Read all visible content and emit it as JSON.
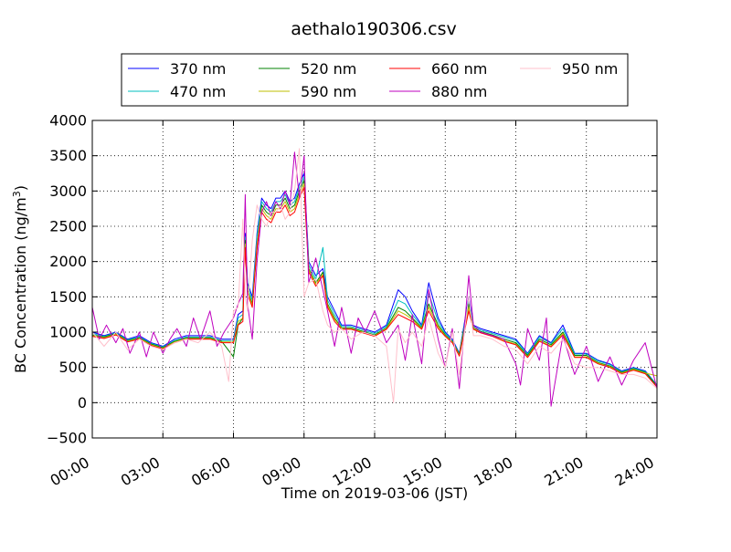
{
  "chart_data": {
    "type": "line",
    "title": "aethalo190306.csv",
    "xlabel": "Time on 2019-03-06 (JST)",
    "ylabel": "BC Concentration (ng/m",
    "ylabel_sup": "3",
    "ylabel_end": ")",
    "xlim": [
      0,
      24
    ],
    "ylim": [
      -500,
      4000
    ],
    "x_ticks": [
      0,
      3,
      6,
      9,
      12,
      15,
      18,
      21,
      24
    ],
    "x_tick_labels": [
      "00:00",
      "03:00",
      "06:00",
      "09:00",
      "12:00",
      "15:00",
      "18:00",
      "21:00",
      "24:00"
    ],
    "y_ticks": [
      -500,
      0,
      500,
      1000,
      1500,
      2000,
      2500,
      3000,
      3500,
      4000
    ],
    "y_tick_labels": [
      "−500",
      "0",
      "500",
      "1000",
      "1500",
      "2000",
      "2500",
      "3000",
      "3500",
      "4000"
    ],
    "grid": true,
    "legend_position": "top",
    "series": [
      {
        "name": "370 nm",
        "color": "#0000ff",
        "x": [
          0,
          0.5,
          1,
          1.5,
          2,
          2.5,
          3,
          3.5,
          4,
          4.5,
          5,
          5.5,
          6,
          6.2,
          6.4,
          6.5,
          6.6,
          6.8,
          7,
          7.2,
          7.4,
          7.6,
          7.8,
          8,
          8.2,
          8.4,
          8.6,
          8.8,
          9,
          9.2,
          9.5,
          9.8,
          10,
          10.3,
          10.6,
          11,
          11.5,
          12,
          12.5,
          13,
          13.3,
          13.6,
          14,
          14.3,
          14.7,
          15,
          15.3,
          15.6,
          16,
          16.2,
          16.5,
          17,
          17.5,
          18,
          18.5,
          19,
          19.5,
          20,
          20.5,
          21,
          21.5,
          22,
          22.5,
          23,
          23.5,
          24
        ],
        "y": [
          1000,
          950,
          1000,
          900,
          950,
          850,
          800,
          900,
          950,
          950,
          950,
          900,
          900,
          1250,
          1300,
          2400,
          1700,
          1500,
          2400,
          2900,
          2800,
          2750,
          2900,
          2900,
          3000,
          2850,
          2900,
          3100,
          3250,
          2000,
          1800,
          1900,
          1500,
          1300,
          1100,
          1100,
          1050,
          1000,
          1100,
          1600,
          1500,
          1300,
          1100,
          1700,
          1200,
          1000,
          900,
          700,
          1500,
          1100,
          1050,
          1000,
          950,
          900,
          700,
          950,
          850,
          1100,
          700,
          700,
          600,
          550,
          450,
          500,
          450,
          250
        ]
      },
      {
        "name": "470 nm",
        "color": "#00bfbf",
        "x": [
          0,
          0.5,
          1,
          1.5,
          2,
          2.5,
          3,
          3.5,
          4,
          4.5,
          5,
          5.5,
          6,
          6.2,
          6.4,
          6.5,
          6.6,
          6.8,
          7,
          7.2,
          7.4,
          7.6,
          7.8,
          8,
          8.2,
          8.4,
          8.6,
          8.8,
          9,
          9.2,
          9.5,
          9.8,
          10,
          10.3,
          10.6,
          11,
          11.5,
          12,
          12.5,
          13,
          13.3,
          13.6,
          14,
          14.3,
          14.7,
          15,
          15.3,
          15.6,
          16,
          16.2,
          16.5,
          17,
          17.5,
          18,
          18.5,
          19,
          19.5,
          20,
          20.5,
          21,
          21.5,
          22,
          22.5,
          23,
          23.5,
          24
        ],
        "y": [
          980,
          940,
          990,
          890,
          930,
          840,
          790,
          880,
          930,
          930,
          930,
          880,
          880,
          1200,
          1250,
          2350,
          1650,
          1450,
          2350,
          2850,
          2750,
          2700,
          2850,
          2850,
          2950,
          2800,
          2850,
          3050,
          3200,
          1950,
          1750,
          2200,
          1450,
          1250,
          1080,
          1080,
          1030,
          980,
          1080,
          1450,
          1400,
          1250,
          1080,
          1550,
          1150,
          980,
          880,
          690,
          1450,
          1080,
          1030,
          980,
          930,
          880,
          690,
          930,
          840,
          1050,
          690,
          690,
          590,
          540,
          440,
          490,
          440,
          250
        ]
      },
      {
        "name": "520 nm",
        "color": "#008000",
        "x": [
          0,
          0.5,
          1,
          1.5,
          2,
          2.5,
          3,
          3.5,
          4,
          4.5,
          5,
          5.5,
          6,
          6.2,
          6.4,
          6.5,
          6.6,
          6.8,
          7,
          7.2,
          7.4,
          7.6,
          7.8,
          8,
          8.2,
          8.4,
          8.6,
          8.8,
          9,
          9.2,
          9.5,
          9.8,
          10,
          10.3,
          10.6,
          11,
          11.5,
          12,
          12.5,
          13,
          13.3,
          13.6,
          14,
          14.3,
          14.7,
          15,
          15.3,
          15.6,
          16,
          16.2,
          16.5,
          17,
          17.5,
          18,
          18.5,
          19,
          19.5,
          20,
          20.5,
          21,
          21.5,
          22,
          22.5,
          23,
          23.5,
          24
        ],
        "y": [
          960,
          930,
          980,
          880,
          920,
          830,
          780,
          870,
          920,
          920,
          920,
          870,
          650,
          1100,
          1200,
          2300,
          1600,
          1400,
          2200,
          2800,
          2700,
          2650,
          2800,
          2800,
          2900,
          2750,
          2800,
          3000,
          3150,
          1900,
          1700,
          1850,
          1400,
          1200,
          1060,
          1060,
          1010,
          960,
          1060,
          1350,
          1300,
          1200,
          1060,
          1400,
          1100,
          960,
          870,
          680,
          1400,
          1060,
          1010,
          960,
          900,
          850,
          670,
          900,
          820,
          1000,
          670,
          670,
          570,
          520,
          430,
          480,
          430,
          240
        ]
      },
      {
        "name": "590 nm",
        "color": "#bfbf00",
        "x": [
          0,
          0.5,
          1,
          1.5,
          2,
          2.5,
          3,
          3.5,
          4,
          4.5,
          5,
          5.5,
          6,
          6.2,
          6.4,
          6.5,
          6.6,
          6.8,
          7,
          7.2,
          7.4,
          7.6,
          7.8,
          8,
          8.2,
          8.4,
          8.6,
          8.8,
          9,
          9.2,
          9.5,
          9.8,
          10,
          10.3,
          10.6,
          11,
          11.5,
          12,
          12.5,
          13,
          13.3,
          13.6,
          14,
          14.3,
          14.7,
          15,
          15.3,
          15.6,
          16,
          16.2,
          16.5,
          17,
          17.5,
          18,
          18.5,
          19,
          19.5,
          20,
          20.5,
          21,
          21.5,
          22,
          22.5,
          23,
          23.5,
          24
        ],
        "y": [
          950,
          920,
          970,
          870,
          910,
          820,
          770,
          860,
          910,
          910,
          910,
          860,
          860,
          1150,
          1200,
          2250,
          1580,
          1380,
          2250,
          2750,
          2650,
          2600,
          2750,
          2750,
          2850,
          2700,
          2750,
          2950,
          3100,
          1880,
          1680,
          1820,
          1380,
          1180,
          1050,
          1050,
          1000,
          950,
          1050,
          1300,
          1250,
          1180,
          1050,
          1350,
          1080,
          950,
          860,
          670,
          1350,
          1050,
          1000,
          950,
          880,
          830,
          650,
          880,
          800,
          980,
          650,
          650,
          560,
          510,
          420,
          470,
          420,
          380
        ]
      },
      {
        "name": "660 nm",
        "color": "#ff0000",
        "x": [
          0,
          0.5,
          1,
          1.5,
          2,
          2.5,
          3,
          3.5,
          4,
          4.5,
          5,
          5.5,
          6,
          6.2,
          6.4,
          6.5,
          6.6,
          6.8,
          7,
          7.2,
          7.4,
          7.6,
          7.8,
          8,
          8.2,
          8.4,
          8.6,
          8.8,
          9,
          9.2,
          9.5,
          9.8,
          10,
          10.3,
          10.6,
          11,
          11.5,
          12,
          12.5,
          13,
          13.3,
          13.6,
          14,
          14.3,
          14.7,
          15,
          15.3,
          15.6,
          16,
          16.2,
          16.5,
          17,
          17.5,
          18,
          18.5,
          19,
          19.5,
          20,
          20.5,
          21,
          21.5,
          22,
          22.5,
          23,
          23.5,
          24
        ],
        "y": [
          940,
          910,
          960,
          860,
          900,
          810,
          760,
          850,
          900,
          900,
          900,
          850,
          850,
          1100,
          1150,
          2200,
          1550,
          1350,
          2200,
          2700,
          2600,
          2550,
          2700,
          2700,
          2800,
          2650,
          2700,
          2900,
          3050,
          1850,
          1650,
          1800,
          1350,
          1150,
          1040,
          1040,
          990,
          940,
          1040,
          1250,
          1200,
          1150,
          1040,
          1300,
          1050,
          940,
          850,
          660,
          1300,
          1040,
          990,
          940,
          870,
          820,
          640,
          870,
          790,
          960,
          640,
          640,
          550,
          500,
          410,
          460,
          410,
          220
        ]
      },
      {
        "name": "880 nm",
        "color": "#bf00bf",
        "x": [
          0,
          0.3,
          0.6,
          1,
          1.3,
          1.6,
          2,
          2.3,
          2.6,
          3,
          3.3,
          3.6,
          4,
          4.3,
          4.6,
          5,
          5.3,
          5.6,
          6,
          6.2,
          6.4,
          6.5,
          6.6,
          6.8,
          7,
          7.2,
          7.4,
          7.6,
          7.8,
          8,
          8.2,
          8.4,
          8.6,
          8.8,
          9,
          9.2,
          9.5,
          9.8,
          10,
          10.3,
          10.6,
          11,
          11.3,
          11.6,
          12,
          12.5,
          13,
          13.3,
          13.6,
          14,
          14.3,
          14.7,
          15,
          15.3,
          15.6,
          16,
          16.2,
          16.5,
          17,
          17.5,
          18,
          18.2,
          18.5,
          19,
          19.3,
          19.5,
          20,
          20.5,
          21,
          21.5,
          22,
          22.5,
          23,
          23.5,
          24
        ],
        "y": [
          1350,
          900,
          1100,
          850,
          1050,
          700,
          1000,
          650,
          1000,
          700,
          900,
          1050,
          800,
          1200,
          900,
          1300,
          800,
          1000,
          1200,
          1400,
          1550,
          2950,
          1400,
          900,
          2000,
          2700,
          2850,
          2650,
          2850,
          2750,
          3000,
          2800,
          3550,
          2900,
          3500,
          1700,
          2050,
          1600,
          1300,
          800,
          1350,
          700,
          1200,
          1000,
          1300,
          850,
          1100,
          600,
          1250,
          550,
          1600,
          900,
          500,
          1050,
          200,
          1800,
          1100,
          1000,
          950,
          900,
          550,
          250,
          1050,
          600,
          1200,
          -50,
          950,
          400,
          800,
          300,
          650,
          250,
          600,
          850,
          200
        ]
      },
      {
        "name": "950 nm",
        "color": "#ffc0cb",
        "x": [
          0,
          0.5,
          1,
          1.5,
          2,
          2.5,
          3,
          3.5,
          4,
          4.5,
          5,
          5.5,
          5.8,
          6,
          6.2,
          6.4,
          6.5,
          6.6,
          6.8,
          7,
          7.2,
          7.4,
          7.6,
          7.8,
          8,
          8.2,
          8.4,
          8.6,
          8.8,
          9,
          9.2,
          9.5,
          9.8,
          10,
          10.3,
          10.6,
          11,
          11.5,
          12,
          12.5,
          12.8,
          13,
          13.3,
          13.6,
          14,
          14.3,
          14.7,
          15,
          15.3,
          15.6,
          16,
          16.2,
          16.5,
          17,
          17.5,
          18,
          18.5,
          19,
          19.5,
          20,
          20.5,
          21,
          21.5,
          22,
          22.5,
          23,
          23.5,
          24
        ],
        "y": [
          1000,
          800,
          1000,
          750,
          900,
          800,
          750,
          850,
          900,
          850,
          1000,
          800,
          300,
          1300,
          1350,
          2600,
          1500,
          1300,
          2300,
          2800,
          2600,
          2500,
          2700,
          2700,
          2800,
          2600,
          2700,
          3000,
          3600,
          1500,
          1700,
          1750,
          1300,
          1100,
          1000,
          1050,
          900,
          1000,
          950,
          800,
          0,
          1050,
          850,
          1000,
          800,
          1200,
          700,
          500,
          1000,
          400,
          1500,
          950,
          950,
          900,
          800,
          750,
          550,
          800,
          700,
          900,
          550,
          500,
          500,
          450,
          400,
          400,
          350,
          200
        ]
      }
    ]
  }
}
